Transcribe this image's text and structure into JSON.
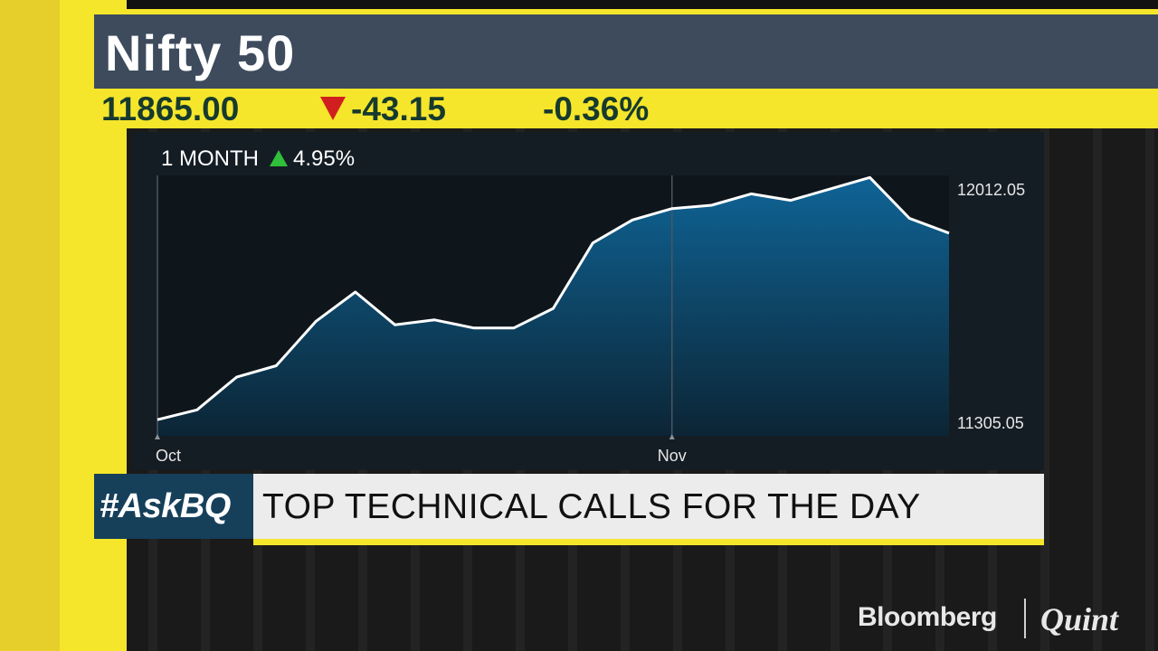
{
  "header": {
    "title": "Nifty 50",
    "price": "11865.00",
    "change": "-43.15",
    "change_pct": "-0.36%",
    "direction_icon": "down-triangle-icon",
    "down_color": "#d11f1f"
  },
  "chart_data": {
    "type": "area",
    "period_label": "1 MONTH",
    "period_change": "4.95%",
    "period_direction_icon": "up-triangle-icon",
    "up_color": "#2fbf3a",
    "x_tick_labels": [
      "Oct",
      "Nov"
    ],
    "x_tick_index": [
      0,
      13
    ],
    "y_tick_labels": [
      "12012.05",
      "11305.05"
    ],
    "ylim": [
      11305.05,
      12012.05
    ],
    "values": [
      11310,
      11340,
      11440,
      11475,
      11610,
      11700,
      11600,
      11615,
      11590,
      11590,
      11650,
      11850,
      11920,
      11955,
      11965,
      12000,
      11980,
      12015,
      12050,
      11925,
      11880
    ],
    "grid": false,
    "line_color": "#ffffff",
    "fill_color": "#0e5f8f"
  },
  "banner": {
    "tag": "#AskBQ",
    "headline": "TOP TECHNICAL CALLS FOR THE DAY"
  },
  "logo": {
    "brand1": "Bloomberg",
    "brand2": "Quint"
  }
}
